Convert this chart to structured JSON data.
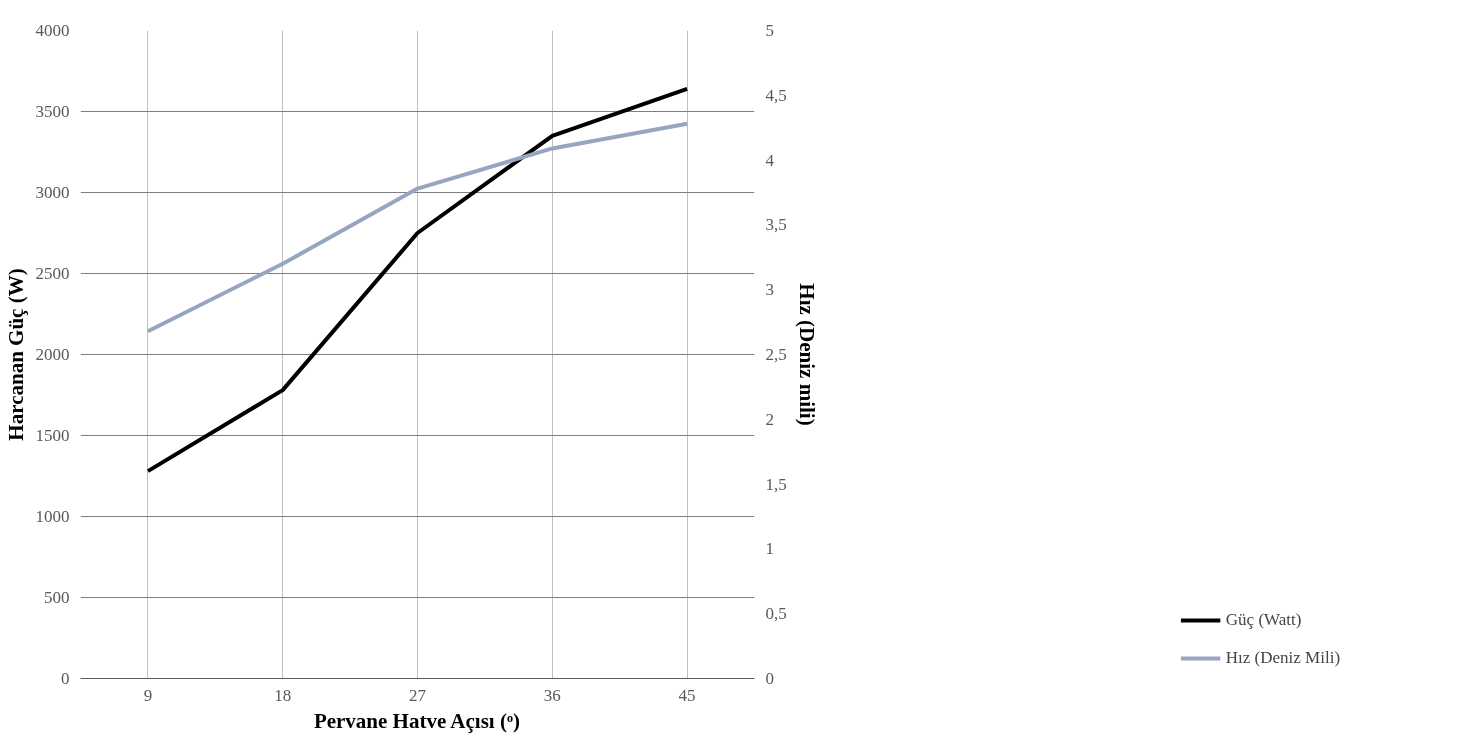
{
  "chart_data": {
    "type": "line",
    "xlabel": "Pervane Hatve Açısı (ᵒ)",
    "ylabel": "Harcanan Güç (W)",
    "y2label": "Hız (Deniz mili)",
    "categories": [
      "9",
      "18",
      "27",
      "36",
      "45"
    ],
    "series": [
      {
        "name": "Güç (Watt)",
        "color": "#000000",
        "values": [
          1280,
          1780,
          2750,
          3350,
          3640
        ]
      },
      {
        "name": "Hız (Deniz Mili)",
        "color": "#97a6c0",
        "axis": "y2",
        "values": [
          2.68,
          3.2,
          3.78,
          4.09,
          4.28
        ]
      }
    ],
    "ylim": [
      0,
      4000
    ],
    "yticks": [
      0,
      500,
      1000,
      1500,
      2000,
      2500,
      3000,
      3500,
      4000
    ],
    "y2lim": [
      0,
      5
    ],
    "y2ticks": [
      0,
      {
        "value": 0.5,
        "label": "0,5"
      },
      1,
      {
        "value": 1.5,
        "label": "1,5"
      },
      2,
      {
        "value": 2.5,
        "label": "2,5"
      },
      3,
      {
        "value": 3.5,
        "label": "3,5"
      },
      4,
      {
        "value": 4.5,
        "label": "4,5"
      },
      5
    ],
    "grid": true,
    "legend": "bottom right",
    "marker": "none",
    "line_style": "solid"
  }
}
